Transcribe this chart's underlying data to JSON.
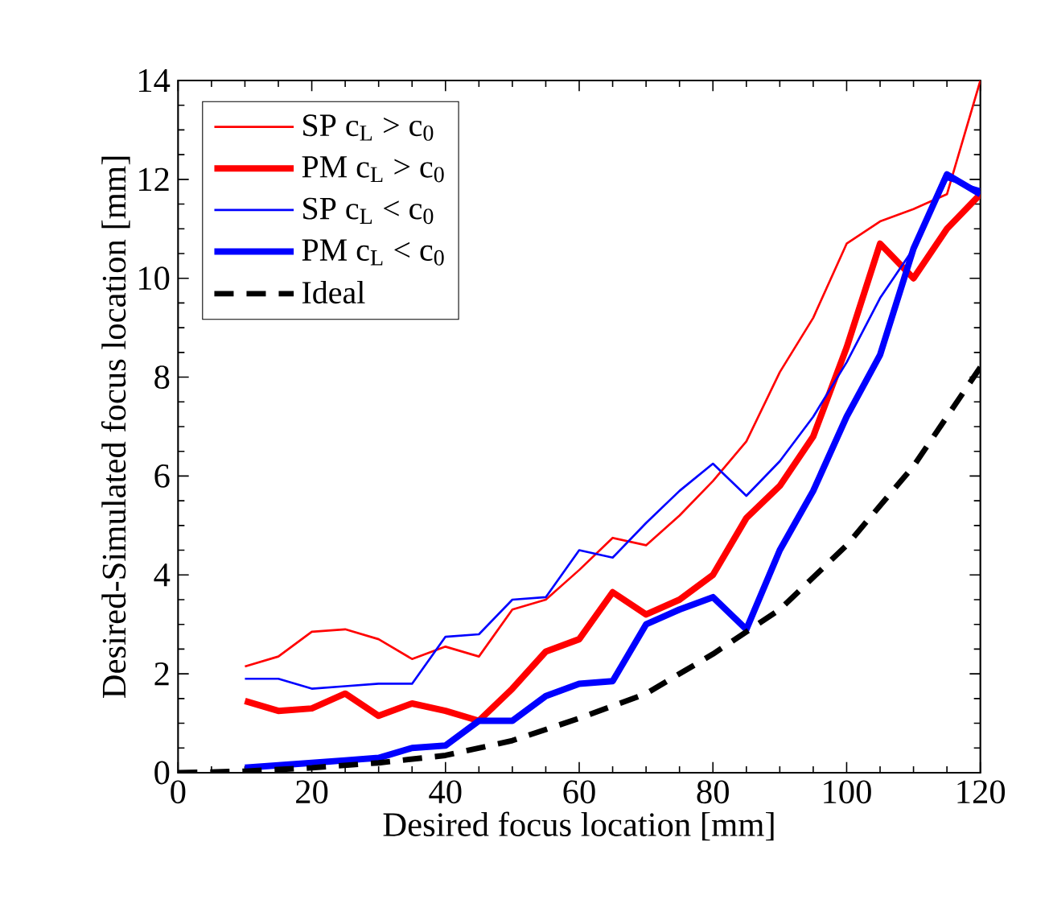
{
  "chart_data": {
    "type": "line",
    "xlabel": "Desired focus location [mm]",
    "ylabel": "Desired-Simulated focus location [mm]",
    "x": [
      10,
      15,
      20,
      25,
      30,
      35,
      40,
      45,
      50,
      55,
      60,
      65,
      70,
      75,
      80,
      85,
      90,
      95,
      100,
      105,
      110,
      115,
      120
    ],
    "series": [
      {
        "name": "SP c$_{L}$ > c$_{0}$",
        "color": "#ff0000",
        "values": [
          2.15,
          2.35,
          2.85,
          2.9,
          2.7,
          2.3,
          2.55,
          2.35,
          3.3,
          3.5,
          4.1,
          4.75,
          4.6,
          5.2,
          5.9,
          6.7,
          8.1,
          9.2,
          10.7,
          11.15,
          11.4,
          11.7,
          14
        ]
      },
      {
        "name": "PM c$_{L}$ > c$_{0}$",
        "color": "#ff0000",
        "values": [
          1.45,
          1.25,
          1.3,
          1.6,
          1.15,
          1.4,
          1.25,
          1.05,
          1.7,
          2.45,
          2.7,
          3.65,
          3.2,
          3.5,
          4.0,
          5.15,
          5.8,
          6.8,
          8.6,
          10.7,
          10.0,
          11.0,
          11.7
        ]
      },
      {
        "name": "SP c$_{L}$ < c$_{0}$",
        "color": "#0000ff",
        "values": [
          1.9,
          1.9,
          1.7,
          1.75,
          1.8,
          1.8,
          2.75,
          2.8,
          3.5,
          3.55,
          4.5,
          4.35,
          5.05,
          5.7,
          6.25,
          5.6,
          6.3,
          7.2,
          8.3,
          9.6,
          10.6,
          12.0,
          11.8
        ]
      },
      {
        "name": "PM c$_{L}$ < c$_{0}$",
        "color": "#0000ff",
        "values": [
          0.1,
          0.15,
          0.2,
          0.25,
          0.3,
          0.5,
          0.55,
          1.05,
          1.05,
          1.55,
          1.8,
          1.85,
          3.0,
          3.3,
          3.55,
          2.9,
          4.5,
          5.7,
          7.2,
          8.45,
          10.6,
          12.1,
          11.7
        ]
      },
      {
        "name": "Ideal",
        "color": "#000000",
        "line_style": "dashed",
        "x": [
          0,
          10,
          20,
          30,
          40,
          50,
          60,
          70,
          80,
          90,
          100,
          110,
          120
        ],
        "values": [
          0,
          0.03,
          0.1,
          0.2,
          0.35,
          0.65,
          1.1,
          1.6,
          2.4,
          3.3,
          4.6,
          6.2,
          8.2
        ]
      }
    ],
    "xlim": [
      0,
      120
    ],
    "ylim": [
      0,
      14
    ],
    "xticks": [
      0,
      20,
      40,
      60,
      80,
      100,
      120
    ],
    "yticks": [
      0,
      2,
      4,
      6,
      8,
      10,
      12,
      14
    ],
    "legend": "top left",
    "grid": false,
    "marker": "none",
    "line_style": "solid"
  }
}
